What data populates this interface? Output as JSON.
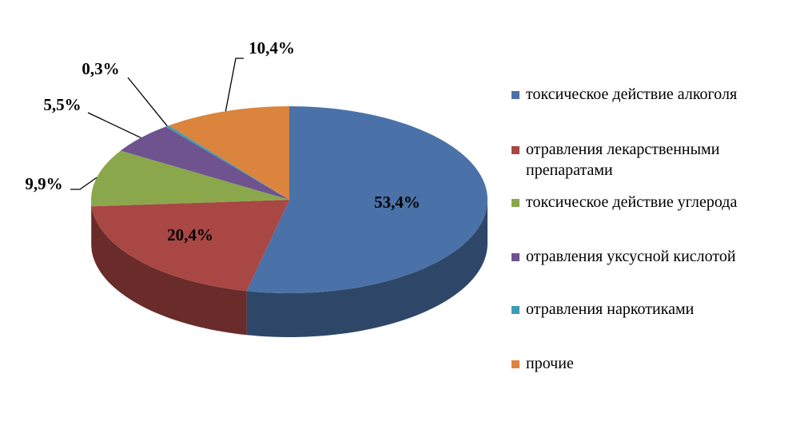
{
  "chart_data": {
    "type": "pie",
    "categories": [
      "токсическое действие алкоголя",
      "отравления лекарственными препаратами",
      "токсическое действие углерода",
      "отравления уксусной кислотой",
      "отравления наркотиками",
      "прочие"
    ],
    "values": [
      53.4,
      20.4,
      9.9,
      5.5,
      0.3,
      10.4
    ],
    "value_labels": [
      "53,4%",
      "20,4%",
      "9,9%",
      "5,5%",
      "0,3%",
      "10,4%"
    ],
    "colors": [
      "#4a72a8",
      "#a94744",
      "#8aa84b",
      "#6f538f",
      "#3f9bb5",
      "#db843d"
    ],
    "legend": "right"
  }
}
